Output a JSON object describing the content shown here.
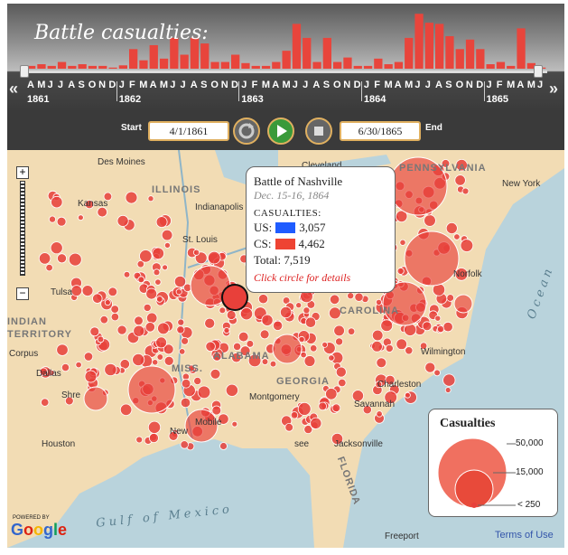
{
  "timeline": {
    "title": "Battle casualties:",
    "months": [
      "A",
      "M",
      "J",
      "J",
      "A",
      "S",
      "O",
      "N",
      "D",
      "J",
      "F",
      "M",
      "A",
      "M",
      "J",
      "J",
      "A",
      "S",
      "O",
      "N",
      "D",
      "J",
      "F",
      "M",
      "A",
      "M",
      "J",
      "J",
      "A",
      "S",
      "O",
      "N",
      "D",
      "J",
      "F",
      "M",
      "A",
      "M",
      "J",
      "J",
      "A",
      "S",
      "O",
      "N",
      "D",
      "J",
      "F",
      "M",
      "A",
      "M",
      "J"
    ],
    "years": [
      "1861",
      "1862",
      "1863",
      "1864",
      "1865"
    ],
    "monthly_bar_levels": [
      0.05,
      0.08,
      0.05,
      0.12,
      0.05,
      0.08,
      0.05,
      0.05,
      0.02,
      0.06,
      0.35,
      0.15,
      0.42,
      0.18,
      0.55,
      0.25,
      0.55,
      0.45,
      0.12,
      0.12,
      0.25,
      0.1,
      0.05,
      0.05,
      0.12,
      0.32,
      0.8,
      0.55,
      0.12,
      0.55,
      0.12,
      0.2,
      0.05,
      0.05,
      0.18,
      0.08,
      0.12,
      0.55,
      0.98,
      0.82,
      0.8,
      0.58,
      0.35,
      0.52,
      0.35,
      0.08,
      0.12,
      0.05,
      0.72,
      0.1,
      0.02
    ]
  },
  "controls": {
    "start_label": "Start",
    "start_value": "4/1/1861",
    "end_label": "End",
    "end_value": "6/30/1865"
  },
  "map": {
    "places": {
      "des_moines": "Des Moines",
      "kansas": "Kansas",
      "illinois": "ILLINOIS",
      "indianapolis": "Indianapolis",
      "st_louis": "St. Louis",
      "tulsa": "Tulsa",
      "indian": "INDIAN",
      "territory": "TERRITORY",
      "corpus": "Corpus",
      "dallas": "Dallas",
      "shreveport": "Shre",
      "houston": "Houston",
      "montgomery": "Montgomery",
      "mobile": "Mobile",
      "new_orleans": "New",
      "savannah": "Savannah",
      "charleston": "Charleston",
      "wilmington": "Wilmington",
      "norfolk": "Norfolk",
      "cleveland": "Cleveland",
      "pennsylvania": "PENNSYLVANIA",
      "new_york": "New York",
      "jacksonville": "Jacksonville",
      "gulf": "Gulf of Mexico",
      "ocean": "Ocean",
      "carolina": "CAROLINA",
      "alabama": "ALABAMA",
      "georgia": "GEORGIA",
      "florida": "FLORIDA",
      "miss": "MISS.",
      "freeport": "Freeport",
      "see": "see"
    },
    "zoom_in": "+",
    "zoom_out": "−",
    "google": "Google",
    "powered": "POWERED BY",
    "terms": "Terms of Use"
  },
  "tooltip": {
    "battle": "Battle of Nashville",
    "date": "Dec. 15-16, 1864",
    "heading": "CASUALTIES:",
    "us_label": "US:",
    "us_value": "3,057",
    "us_color": "#1f5cff",
    "cs_label": "CS:",
    "cs_value": "4,462",
    "cs_color": "#ee4433",
    "total_label": "Total:",
    "total_value": "7,519",
    "hint": "Click circle for details"
  },
  "legend": {
    "title": "Casualties",
    "v1": "50,000",
    "v2": "15,000",
    "v3": "< 250"
  },
  "colors": {
    "marker": "#e8403a",
    "land": "#f2dcb4",
    "water": "#b9d3dc"
  }
}
